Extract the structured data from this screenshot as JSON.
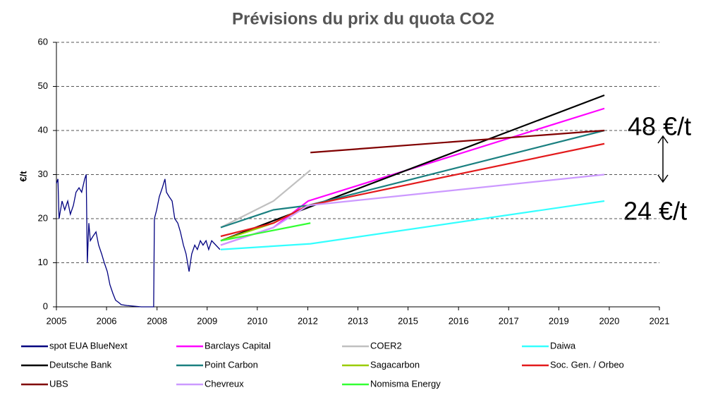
{
  "chart_data": {
    "type": "line",
    "title": "Prévisions du prix du quota CO2",
    "y_label": "€/t",
    "xlim": [
      2005,
      2021
    ],
    "xticks": [
      {
        "value": 2005,
        "label": "2005"
      },
      {
        "value": 2006.33,
        "label": "2006"
      },
      {
        "value": 2007.67,
        "label": "2008"
      },
      {
        "value": 2009,
        "label": "2009"
      },
      {
        "value": 2010.33,
        "label": "2010"
      },
      {
        "value": 2011.67,
        "label": "2012"
      },
      {
        "value": 2013,
        "label": "2013"
      },
      {
        "value": 2014.33,
        "label": "2015"
      },
      {
        "value": 2015.67,
        "label": "2016"
      },
      {
        "value": 2017,
        "label": "2017"
      },
      {
        "value": 2018.33,
        "label": "2019"
      },
      {
        "value": 2019.67,
        "label": "2020"
      },
      {
        "value": 2021,
        "label": "2021"
      }
    ],
    "ylim": [
      0,
      60
    ],
    "yticks": [
      0,
      10,
      20,
      30,
      40,
      50,
      60
    ],
    "grid": true,
    "annotations": [
      "48 €/t",
      "24 €/t"
    ],
    "series": [
      {
        "name": "spot EUA BlueNext",
        "color": "#000080",
        "x": [
          2005.0,
          2005.04,
          2005.07,
          2005.15,
          2005.22,
          2005.3,
          2005.37,
          2005.45,
          2005.52,
          2005.6,
          2005.67,
          2005.75,
          2005.79,
          2005.82,
          2005.86,
          2005.9,
          2005.97,
          2006.05,
          2006.12,
          2006.2,
          2006.27,
          2006.35,
          2006.42,
          2006.5,
          2006.57,
          2006.65,
          2006.72,
          2006.87,
          2007.25,
          2007.58,
          2007.6,
          2007.66,
          2007.73,
          2007.81,
          2007.88,
          2007.92,
          2007.99,
          2008.07,
          2008.14,
          2008.22,
          2008.29,
          2008.37,
          2008.44,
          2008.52,
          2008.59,
          2008.67,
          2008.74,
          2008.82,
          2008.89,
          2008.97,
          2009.04,
          2009.12,
          2009.34
        ],
        "values": [
          28,
          29,
          20,
          24,
          22,
          24,
          21,
          23,
          26,
          27,
          26,
          29,
          30,
          10,
          19,
          15,
          16,
          17,
          14,
          12,
          10,
          8,
          5,
          3,
          1.5,
          1,
          0.5,
          0.3,
          0,
          0,
          20,
          22,
          25,
          27,
          29,
          26,
          25,
          24,
          20,
          19,
          17,
          14,
          12,
          8,
          12,
          14,
          13,
          15,
          14,
          15,
          13,
          15,
          13
        ]
      },
      {
        "name": "Barclays Capital",
        "color": "#ff00ff",
        "x": [
          2009.36,
          2010.76,
          2011.68,
          2019.54
        ],
        "values": [
          14,
          18,
          24,
          45
        ]
      },
      {
        "name": "COER2",
        "color": "#c0c0c0",
        "x": [
          2009.36,
          2010.76,
          2011.74
        ],
        "values": [
          18,
          24,
          31
        ]
      },
      {
        "name": "Daiwa",
        "color": "#33ffff",
        "x": [
          2009.36,
          2011.74,
          2019.54
        ],
        "values": [
          13,
          14.3,
          24
        ]
      },
      {
        "name": "Deutsche Bank",
        "color": "#000000",
        "x": [
          2009.36,
          2019.54
        ],
        "values": [
          15,
          48
        ]
      },
      {
        "name": "Point Carbon",
        "color": "#1a8080",
        "x": [
          2009.36,
          2010.76,
          2011.68,
          2019.54
        ],
        "values": [
          18,
          22,
          23,
          40
        ]
      },
      {
        "name": "Sagacarbon",
        "color": "#99cc00",
        "x": [
          2009.36,
          2010.76,
          2011.68
        ],
        "values": [
          15,
          19,
          23
        ]
      },
      {
        "name": "Soc. Gen. / Orbeo",
        "color": "#e31a1c",
        "x": [
          2009.36,
          2010.76,
          2011.68,
          2019.54
        ],
        "values": [
          16,
          19,
          23,
          37
        ]
      },
      {
        "name": "UBS",
        "color": "#800000",
        "x": [
          2011.74,
          2019.54
        ],
        "values": [
          35,
          40
        ]
      },
      {
        "name": "Chevreux",
        "color": "#cc99ff",
        "x": [
          2009.36,
          2010.76,
          2011.68,
          2019.54
        ],
        "values": [
          14,
          18,
          23,
          30
        ]
      },
      {
        "name": "Nomisma Energy",
        "color": "#33ff33",
        "x": [
          2009.36,
          2011.74
        ],
        "values": [
          15,
          19
        ]
      }
    ]
  }
}
